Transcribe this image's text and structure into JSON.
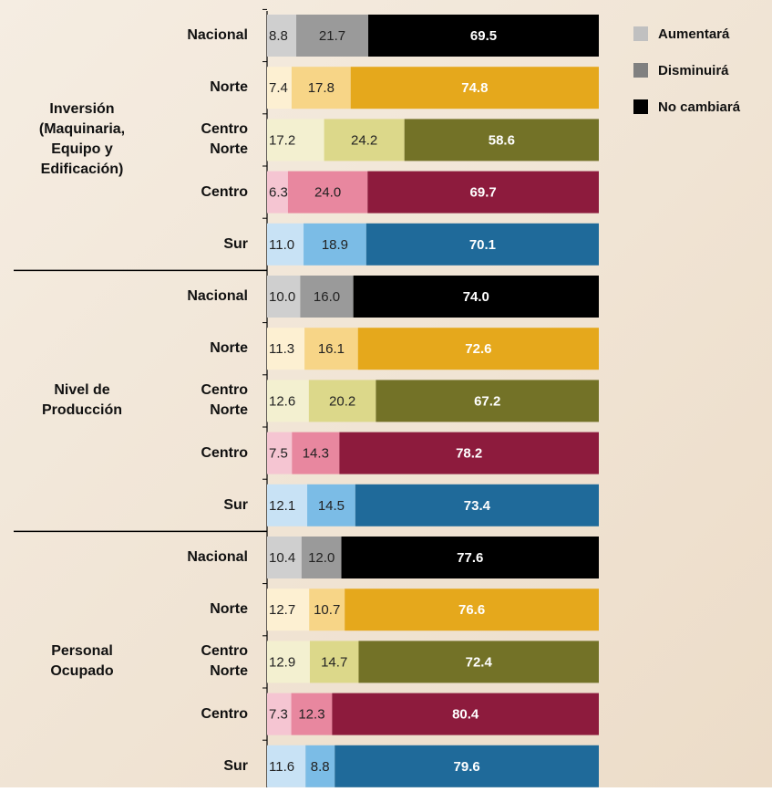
{
  "chart_data": {
    "type": "bar",
    "stacked": true,
    "horizontal": true,
    "xlim": [
      0,
      100
    ],
    "legend": [
      {
        "name": "Aumentará",
        "color": "#c0c0c0"
      },
      {
        "name": "Disminuirá",
        "color": "#808080"
      },
      {
        "name": "No cambiará",
        "color": "#000000"
      }
    ],
    "colors": [
      [
        "#cfcfcf",
        "#9a9a9a",
        "#000000"
      ],
      [
        "#fdf0d2",
        "#f7d587",
        "#e5a81c"
      ],
      [
        "#f3f0d0",
        "#dcd88a",
        "#737227"
      ],
      [
        "#f5c5d2",
        "#e8879f",
        "#8d1b3d"
      ],
      [
        "#c8e2f5",
        "#7bbce6",
        "#1f6a9a"
      ]
    ],
    "groups": [
      {
        "label": "Inversión (Maquinaria, Equipo y Edificación)",
        "categories": [
          "Nacional",
          "Norte",
          "Centro Norte",
          "Centro",
          "Sur"
        ],
        "series": [
          {
            "values": [
              8.8,
              7.4,
              17.2,
              6.3,
              11.0
            ],
            "value_labels": [
              "8.8",
              "7.4",
              "17.2",
              "6.3",
              "11.0"
            ]
          },
          {
            "values": [
              21.7,
              17.8,
              24.2,
              24.0,
              18.9
            ],
            "value_labels": [
              "21.7",
              "17.8",
              "24.2",
              "24.0",
              "18.9"
            ]
          },
          {
            "values": [
              69.5,
              74.8,
              58.6,
              69.7,
              70.1
            ],
            "value_labels": [
              "69.5",
              "74.8",
              "58.6",
              "69.7",
              "70.1"
            ]
          }
        ]
      },
      {
        "label": "Nivel de Producción",
        "categories": [
          "Nacional",
          "Norte",
          "Centro Norte",
          "Centro",
          "Sur"
        ],
        "series": [
          {
            "values": [
              10.0,
              11.3,
              12.6,
              7.5,
              12.1
            ],
            "value_labels": [
              "10.0",
              "11.3",
              "12.6",
              "7.5",
              "12.1"
            ]
          },
          {
            "values": [
              16.0,
              16.1,
              20.2,
              14.3,
              14.5
            ],
            "value_labels": [
              "16.0",
              "16.1",
              "20.2",
              "14.3",
              "14.5"
            ]
          },
          {
            "values": [
              74.0,
              72.6,
              67.2,
              78.2,
              73.4
            ],
            "value_labels": [
              "74.0",
              "72.6",
              "67.2",
              "78.2",
              "73.4"
            ]
          }
        ]
      },
      {
        "label": "Personal Ocupado",
        "categories": [
          "Nacional",
          "Norte",
          "Centro Norte",
          "Centro",
          "Sur"
        ],
        "series": [
          {
            "values": [
              10.4,
              12.7,
              12.9,
              7.3,
              11.6
            ],
            "value_labels": [
              "10.4",
              "12.7",
              "12.9",
              "7.3",
              "11.6"
            ]
          },
          {
            "values": [
              12.0,
              10.7,
              14.7,
              12.3,
              8.8
            ],
            "value_labels": [
              "12.0",
              "10.7",
              "14.7",
              "12.3",
              "8.8"
            ]
          },
          {
            "values": [
              77.6,
              76.6,
              72.4,
              80.4,
              79.6
            ],
            "value_labels": [
              "77.6",
              "76.6",
              "72.4",
              "80.4",
              "79.6"
            ]
          }
        ]
      }
    ]
  }
}
